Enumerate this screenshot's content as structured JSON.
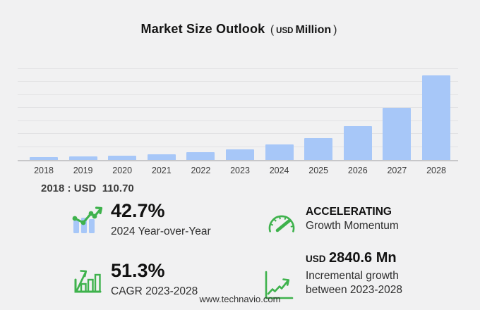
{
  "title": {
    "main": "Market Size Outlook",
    "open_paren": "(",
    "currency": "USD",
    "unit": "Million",
    "close_paren": ")"
  },
  "chart_data": {
    "type": "bar",
    "title": "Market Size Outlook (USD Million)",
    "categories": [
      "2018",
      "2019",
      "2020",
      "2021",
      "2022",
      "2023",
      "2024",
      "2025",
      "2026",
      "2027",
      "2028"
    ],
    "values": [
      110.7,
      138.9,
      176.4,
      228.3,
      302.6,
      410.0,
      585.1,
      855.0,
      1290.0,
      2005.0,
      3250.6
    ],
    "xlabel": "",
    "ylabel": "USD Million",
    "ylim": [
      0,
      3500
    ],
    "gridline_step": 500,
    "grid": true,
    "y_axis_labels_visible": false,
    "legend": false,
    "bar_color": "#a7c7f8",
    "notes": "2018 value labeled as USD 110.70; 2024 YoY growth 42.7%; CAGR 2023-2028 51.3%; incremental growth 2023-2028 USD 2840.6 Mn; interim values estimated from bar heights vs gridlines"
  },
  "annotation_2018": "2018 : USD  110.70",
  "stats": {
    "yoy": {
      "value": "42.7%",
      "label": "2024 Year-over-Year"
    },
    "momentum": {
      "value": "ACCELERATING",
      "label": "Growth Momentum"
    },
    "cagr": {
      "value": "51.3%",
      "label": "CAGR 2023-2028"
    },
    "incremental": {
      "currency": "USD",
      "value": "2840.6 Mn",
      "label_line1": "Incremental growth",
      "label_line2": "between 2023-2028"
    }
  },
  "footer": {
    "website": "www.technavio.com"
  },
  "colors": {
    "background": "#f1f1f2",
    "bar_blue": "#a7c7f8",
    "accent_green": "#3eb24c",
    "gridline": "#e2e2e4",
    "axis": "#c7c7c9"
  }
}
